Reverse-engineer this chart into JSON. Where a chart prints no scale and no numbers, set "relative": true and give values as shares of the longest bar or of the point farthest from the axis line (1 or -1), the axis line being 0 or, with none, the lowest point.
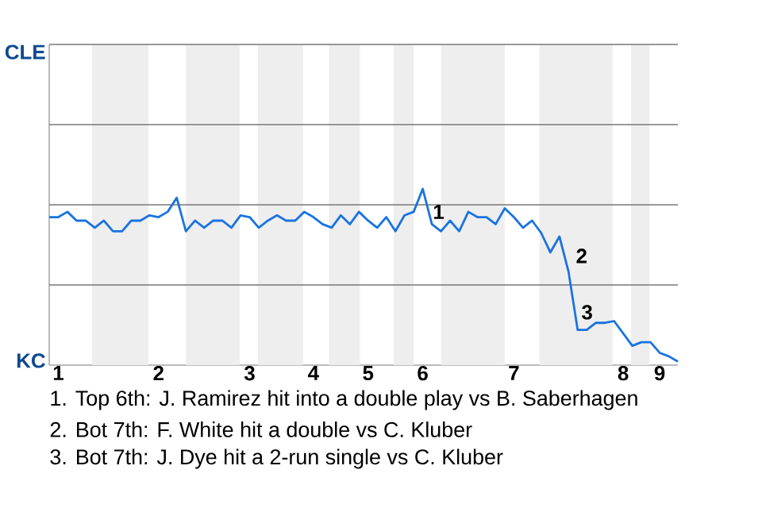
{
  "chart_data": {
    "type": "line",
    "categories": [
      null,
      "1",
      null,
      null,
      null,
      null,
      null,
      null,
      null,
      null,
      null,
      null,
      "2",
      null,
      null,
      null,
      null,
      null,
      null,
      null,
      null,
      null,
      "3",
      null,
      null,
      null,
      null,
      null,
      null,
      "4",
      null,
      null,
      null,
      null,
      null,
      "5",
      null,
      null,
      null,
      null,
      null,
      "6",
      null,
      null,
      null,
      null,
      null,
      null,
      null,
      null,
      null,
      "7",
      null,
      null,
      null,
      null,
      null,
      null,
      null,
      null,
      null,
      null,
      null,
      "8",
      null,
      null,
      null,
      "9",
      null,
      null
    ],
    "series": [
      {
        "color": "#1a73e0",
        "values": [
          0.84,
          0.84,
          0.87,
          0.82,
          0.82,
          0.78,
          0.82,
          0.76,
          0.76,
          0.82,
          0.82,
          0.85,
          0.84,
          0.87,
          0.95,
          0.76,
          0.82,
          0.78,
          0.82,
          0.82,
          0.78,
          0.85,
          0.84,
          0.78,
          0.82,
          0.85,
          0.82,
          0.82,
          0.87,
          0.84,
          0.8,
          0.78,
          0.85,
          0.8,
          0.87,
          0.82,
          0.78,
          0.84,
          0.76,
          0.85,
          0.87,
          1,
          0.8,
          0.76,
          0.82,
          0.76,
          0.87,
          0.84,
          0.84,
          0.8,
          0.89,
          0.84,
          0.78,
          0.82,
          0.75,
          0.64,
          0.73,
          0.53,
          0.2,
          0.2,
          0.24,
          0.24,
          0.25,
          0.18,
          0.11,
          0.13,
          0.13,
          0.07,
          0.05,
          0.02
        ]
      }
    ],
    "relative": true,
    "ref_lines": [
      {
        "axis": "y",
        "value": 0.455,
        "color": "#777777"
      },
      {
        "axis": "y",
        "value": 0.91,
        "color": "#777777"
      },
      {
        "axis": "y",
        "value": 1.365,
        "color": "#777777"
      },
      {
        "axis": "y",
        "value": 1.82,
        "color": "#777777"
      }
    ],
    "annotations": [
      "CLE",
      "KC",
      "1",
      "2",
      "3",
      "1. Top 6th: J. Ramirez hit into a double play vs B. Saberhagen",
      "2. Bot 7th: F. White hit a double vs C. Kluber",
      "3. Bot 7th: J. Dye hit a 2-run single vs C. Kluber"
    ]
  }
}
